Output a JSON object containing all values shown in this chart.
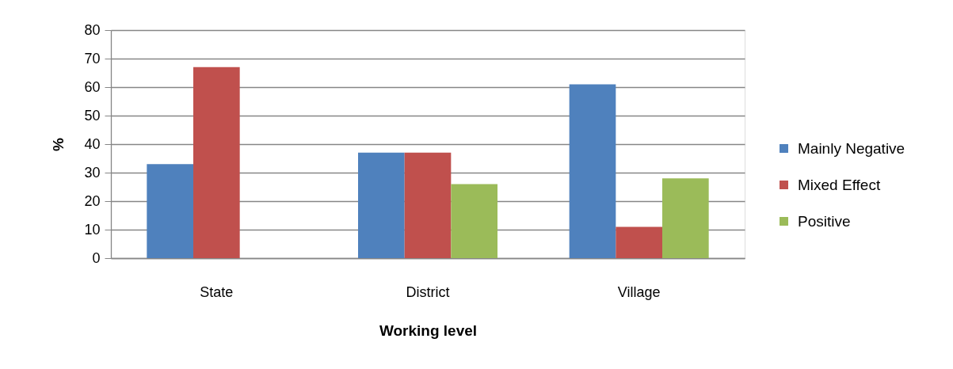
{
  "chart_data": {
    "type": "bar",
    "xlabel": "Working level",
    "ylabel": "%",
    "categories": [
      "State",
      "District",
      "Village"
    ],
    "series": [
      {
        "name": "Mainly Negative",
        "color": "#4f81bd",
        "values": [
          33,
          37,
          61
        ]
      },
      {
        "name": "Mixed Effect",
        "color": "#c0504d",
        "values": [
          67,
          37,
          11
        ]
      },
      {
        "name": "Positive",
        "color": "#9bbb59",
        "values": [
          null,
          26,
          28
        ]
      }
    ],
    "ylim": [
      0,
      80
    ],
    "yticks": [
      0,
      10,
      20,
      30,
      40,
      50,
      60,
      70,
      80
    ],
    "grid": "y",
    "legend": "right"
  }
}
